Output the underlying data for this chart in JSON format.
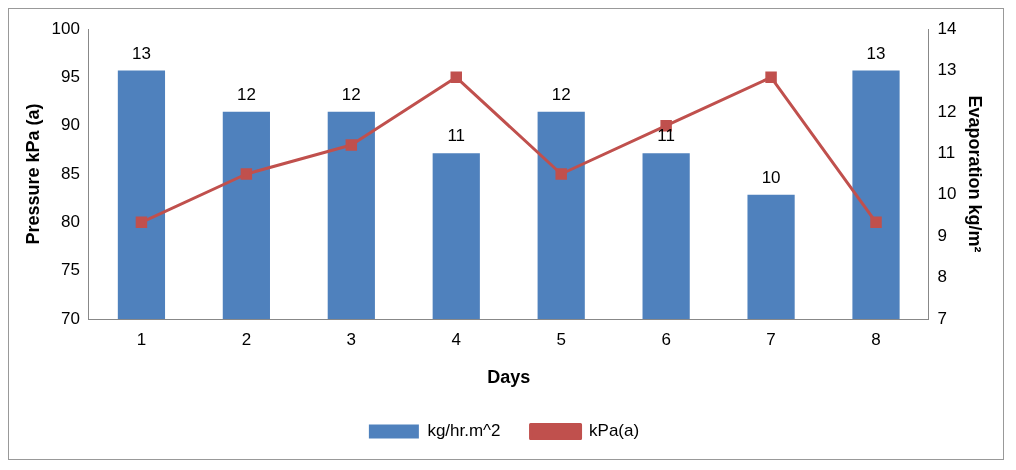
{
  "chart_data": {
    "type": "bar",
    "xlabel": "Days",
    "ylabel": "Pressure kPa (a)",
    "y2label": "Evaporation kg/m²",
    "categories": [
      "1",
      "2",
      "3",
      "4",
      "5",
      "6",
      "7",
      "8"
    ],
    "series": [
      {
        "name": "kg/hr.m^2",
        "axis": "y2",
        "color": "#4f81bd",
        "values": [
          13,
          12,
          12,
          11,
          12,
          11,
          10,
          13
        ],
        "value_labels": [
          "13",
          "12",
          "12",
          "11",
          "12",
          "11",
          "10",
          "13"
        ]
      },
      {
        "name": "kPa(a)",
        "type": "line",
        "axis": "y",
        "color": "#c0504d",
        "values": [
          80,
          85,
          88,
          95,
          85,
          90,
          95,
          80
        ]
      }
    ],
    "ylim": [
      70,
      100
    ],
    "yticks": [
      70,
      75,
      80,
      85,
      90,
      95,
      100
    ],
    "y2lim": [
      7,
      14
    ],
    "y2ticks": [
      7,
      8,
      9,
      10,
      11,
      12,
      13,
      14
    ],
    "marker": "square",
    "legend": "bottom",
    "grid": false
  }
}
